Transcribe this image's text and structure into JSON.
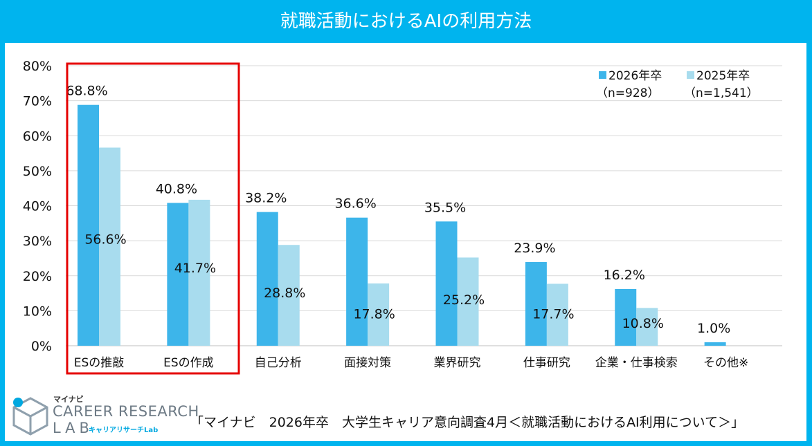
{
  "title": "就職活動におけるAIの利用方法",
  "source_note": "「マイナビ　2026年卒　大学生キャリア意向調査4月＜就職活動におけるAI利用について＞」",
  "logo": {
    "brand": "マイナビ",
    "line1": "CAREER RESEARCH",
    "line2": "LAB",
    "sub": "キャリアリサーチLab"
  },
  "colors": {
    "frame": "#00b4ee",
    "series_2026": "#3db5ea",
    "series_2025": "#a8dcee",
    "highlight_box": "#e50000",
    "gridline": "#d9d9d9"
  },
  "chart_data": {
    "type": "bar",
    "categories": [
      "ESの推敲",
      "ESの作成",
      "自己分析",
      "面接対策",
      "業界研究",
      "仕事研究",
      "企業・仕事検索",
      "その他※"
    ],
    "series": [
      {
        "name": "2026年卒",
        "sample": "（n=928）",
        "values": [
          68.8,
          40.8,
          38.2,
          36.6,
          35.5,
          23.9,
          16.2,
          1.0
        ],
        "labels": [
          "68.8%",
          "40.8%",
          "38.2%",
          "36.6%",
          "35.5%",
          "23.9%",
          "16.2%",
          "1.0%"
        ]
      },
      {
        "name": "2025年卒",
        "sample": "（n=1,541）",
        "values": [
          56.6,
          41.7,
          28.8,
          17.8,
          25.2,
          17.7,
          10.8,
          null
        ],
        "labels": [
          "56.6%",
          "41.7%",
          "28.8%",
          "17.8%",
          "25.2%",
          "17.7%",
          "10.8%",
          ""
        ]
      }
    ],
    "y_ticks": [
      "0%",
      "10%",
      "20%",
      "30%",
      "40%",
      "50%",
      "60%",
      "70%",
      "80%"
    ],
    "ylim": [
      0,
      80
    ],
    "grid": true,
    "legend_position": "top-right",
    "highlighted_categories": [
      "ESの推敲",
      "ESの作成"
    ]
  }
}
